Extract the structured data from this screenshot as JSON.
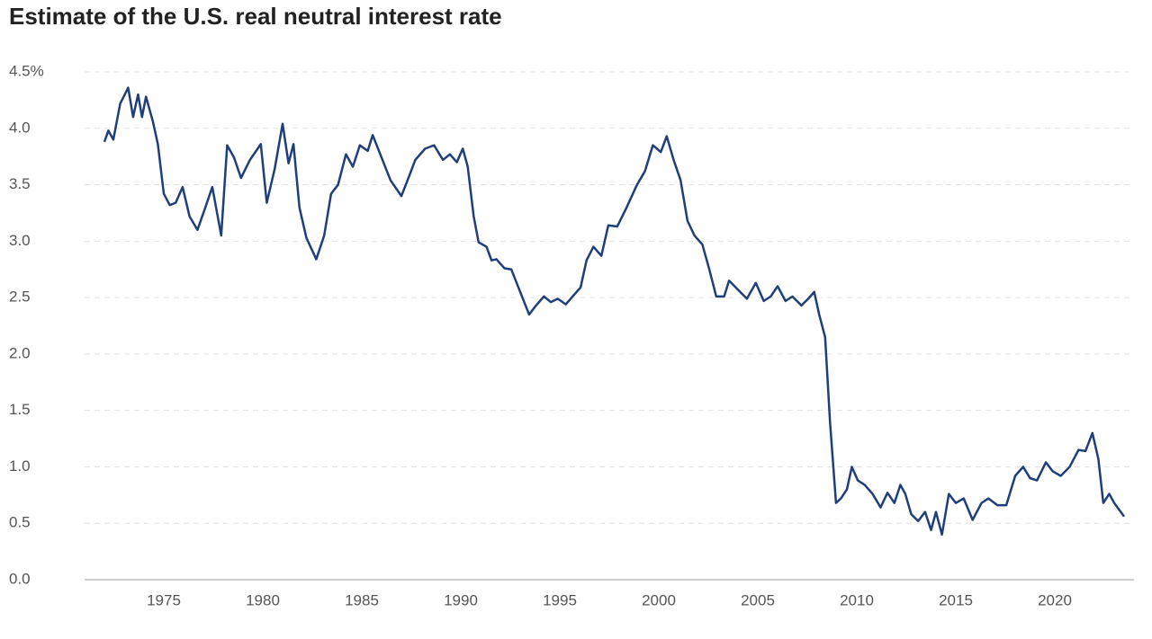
{
  "chart_data": {
    "type": "line",
    "title": "Estimate of the U.S. real neutral interest rate",
    "x": [
      1972.0,
      1972.2,
      1972.45,
      1972.8,
      1973.2,
      1973.45,
      1973.7,
      1973.9,
      1974.1,
      1974.45,
      1974.7,
      1975.0,
      1975.3,
      1975.6,
      1975.95,
      1976.3,
      1976.7,
      1977.1,
      1977.45,
      1977.9,
      1978.2,
      1978.55,
      1978.9,
      1979.35,
      1979.9,
      1980.2,
      1980.6,
      1981.0,
      1981.3,
      1981.55,
      1981.85,
      1982.2,
      1982.7,
      1983.1,
      1983.45,
      1983.8,
      1984.2,
      1984.55,
      1984.9,
      1985.3,
      1985.55,
      1986.0,
      1986.45,
      1987.0,
      1987.4,
      1987.7,
      1988.2,
      1988.65,
      1989.1,
      1989.45,
      1989.8,
      1990.1,
      1990.35,
      1990.65,
      1990.9,
      1991.3,
      1991.55,
      1991.8,
      1992.2,
      1992.55,
      1993.0,
      1993.45,
      1993.8,
      1994.2,
      1994.55,
      1994.9,
      1995.3,
      1995.65,
      1996.05,
      1996.35,
      1996.7,
      1997.1,
      1997.45,
      1997.9,
      1998.35,
      1998.9,
      1999.3,
      1999.7,
      2000.1,
      2000.4,
      2000.75,
      2001.1,
      2001.45,
      2001.8,
      2002.2,
      2002.55,
      2002.9,
      2003.3,
      2003.55,
      2004.0,
      2004.45,
      2004.9,
      2005.3,
      2005.65,
      2006.0,
      2006.4,
      2006.75,
      2007.2,
      2007.55,
      2007.85,
      2008.1,
      2008.4,
      2008.65,
      2008.95,
      2009.2,
      2009.5,
      2009.75,
      2010.05,
      2010.4,
      2010.8,
      2011.2,
      2011.55,
      2011.9,
      2012.2,
      2012.45,
      2012.75,
      2013.1,
      2013.45,
      2013.75,
      2014.0,
      2014.3,
      2014.65,
      2015.0,
      2015.4,
      2015.85,
      2016.3,
      2016.65,
      2017.1,
      2017.55,
      2018.0,
      2018.4,
      2018.75,
      2019.1,
      2019.55,
      2019.9,
      2020.3,
      2020.75,
      2021.2,
      2021.55,
      2021.9,
      2022.2,
      2022.45,
      2022.75,
      2023.0,
      2023.5
    ],
    "series": [
      {
        "name": "Real neutral interest rate",
        "color": "#1f3f7a",
        "values": [
          3.88,
          3.98,
          3.9,
          4.22,
          4.36,
          4.1,
          4.3,
          4.1,
          4.28,
          4.06,
          3.86,
          3.42,
          3.32,
          3.34,
          3.48,
          3.22,
          3.1,
          3.3,
          3.48,
          3.05,
          3.85,
          3.74,
          3.56,
          3.72,
          3.86,
          3.34,
          3.64,
          4.04,
          3.69,
          3.86,
          3.3,
          3.03,
          2.84,
          3.05,
          3.42,
          3.5,
          3.77,
          3.66,
          3.85,
          3.8,
          3.94,
          3.74,
          3.54,
          3.4,
          3.58,
          3.72,
          3.82,
          3.85,
          3.72,
          3.77,
          3.7,
          3.82,
          3.66,
          3.22,
          2.99,
          2.95,
          2.83,
          2.84,
          2.76,
          2.75,
          2.55,
          2.35,
          2.43,
          2.51,
          2.46,
          2.49,
          2.44,
          2.51,
          2.59,
          2.83,
          2.95,
          2.87,
          3.14,
          3.13,
          3.29,
          3.5,
          3.62,
          3.85,
          3.79,
          3.93,
          3.72,
          3.54,
          3.18,
          3.05,
          2.97,
          2.75,
          2.51,
          2.51,
          2.65,
          2.57,
          2.49,
          2.63,
          2.47,
          2.51,
          2.6,
          2.47,
          2.51,
          2.43,
          2.49,
          2.55,
          2.35,
          2.15,
          1.39,
          0.68,
          0.72,
          0.8,
          1.0,
          0.88,
          0.84,
          0.76,
          0.64,
          0.77,
          0.68,
          0.84,
          0.76,
          0.58,
          0.52,
          0.6,
          0.44,
          0.6,
          0.4,
          0.76,
          0.68,
          0.72,
          0.53,
          0.68,
          0.72,
          0.66,
          0.66,
          0.92,
          1.0,
          0.9,
          0.88,
          1.04,
          0.96,
          0.92,
          1.0,
          1.15,
          1.14,
          1.3,
          1.07,
          0.68,
          0.76,
          0.68,
          0.56
        ]
      }
    ],
    "xlim": [
      1971,
      2024
    ],
    "xticks": [
      1975,
      1980,
      1985,
      1990,
      1995,
      2000,
      2005,
      2010,
      2015,
      2020
    ],
    "ylim": [
      0,
      4.5
    ],
    "yticks": [
      {
        "value": 0,
        "label": "0.0"
      },
      0.5,
      {
        "value": 1,
        "label": "1.0"
      },
      1.5,
      {
        "value": 2,
        "label": "2.0"
      },
      2.5,
      {
        "value": 3,
        "label": "3.0"
      },
      3.5,
      {
        "value": 4,
        "label": "4.0"
      },
      {
        "value": 4.5,
        "label": "4.5%"
      }
    ],
    "grid": true
  }
}
